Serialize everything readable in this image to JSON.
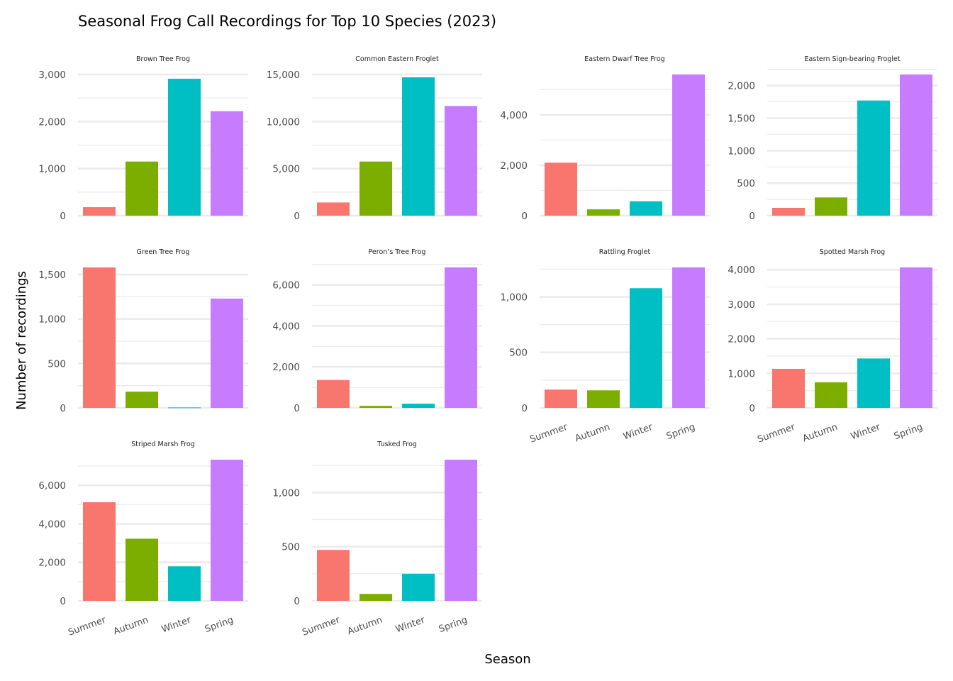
{
  "chart_data": {
    "type": "bar",
    "title": "Seasonal Frog Call Recordings for Top 10 Species (2023)",
    "xlabel": "Season",
    "ylabel": "Number of recordings",
    "categories": [
      "Summer",
      "Autumn",
      "Winter",
      "Spring"
    ],
    "colors": {
      "Summer": "#F8766D",
      "Autumn": "#7CAE00",
      "Winter": "#00BFC4",
      "Spring": "#C77CFF"
    },
    "grid": true,
    "legend": "none",
    "facets": [
      {
        "name": "Brown Tree Frog",
        "values": [
          180,
          1150,
          2910,
          2220
        ],
        "yticks": [
          0,
          1000,
          2000,
          3000
        ],
        "tick_labels": [
          "0",
          "1,000",
          "2,000",
          "3,000"
        ],
        "ylim": [
          0,
          3000
        ],
        "minor_step": 500
      },
      {
        "name": "Common Eastern Froglet",
        "values": [
          1400,
          5750,
          14700,
          11650
        ],
        "yticks": [
          0,
          5000,
          10000,
          15000
        ],
        "tick_labels": [
          "0",
          "5,000",
          "10,000",
          "15,000"
        ],
        "ylim": [
          0,
          15000
        ],
        "minor_step": 2500
      },
      {
        "name": "Eastern Dwarf Tree Frog",
        "values": [
          2100,
          250,
          570,
          5600
        ],
        "yticks": [
          0,
          2000,
          4000
        ],
        "tick_labels": [
          "0",
          "2,000",
          "4,000"
        ],
        "ylim": [
          0,
          5600
        ],
        "minor_step": 1000
      },
      {
        "name": "Eastern Sign-bearing Froglet",
        "values": [
          120,
          280,
          1770,
          2170
        ],
        "yticks": [
          0,
          500,
          1000,
          1500,
          2000
        ],
        "tick_labels": [
          "0",
          "500",
          "1,000",
          "1,500",
          "2,000"
        ],
        "ylim": [
          0,
          2170
        ],
        "minor_step": 250
      },
      {
        "name": "Green Tree Frog",
        "values": [
          1580,
          183,
          5,
          1230
        ],
        "yticks": [
          0,
          500,
          1000,
          1500
        ],
        "tick_labels": [
          "0",
          "500",
          "1,000",
          "1,500"
        ],
        "ylim": [
          0,
          1580
        ],
        "minor_step": 250
      },
      {
        "name": "Peron’s Tree Frog",
        "values": [
          1360,
          100,
          205,
          6850
        ],
        "yticks": [
          0,
          2000,
          4000,
          6000
        ],
        "tick_labels": [
          "0",
          "2,000",
          "4,000",
          "6,000"
        ],
        "ylim": [
          0,
          6850
        ],
        "minor_step": 1000
      },
      {
        "name": "Rattling Froglet",
        "values": [
          165,
          158,
          1078,
          1265
        ],
        "yticks": [
          0,
          500,
          1000
        ],
        "tick_labels": [
          "0",
          "500",
          "1,000"
        ],
        "ylim": [
          0,
          1265
        ],
        "minor_step": 250
      },
      {
        "name": "Spotted Marsh Frog",
        "values": [
          1130,
          740,
          1430,
          4065
        ],
        "yticks": [
          0,
          1000,
          2000,
          3000,
          4000
        ],
        "tick_labels": [
          "0",
          "1,000",
          "2,000",
          "3,000",
          "4,000"
        ],
        "ylim": [
          0,
          4065
        ],
        "minor_step": 500
      },
      {
        "name": "Striped Marsh Frog",
        "values": [
          5120,
          3225,
          1795,
          7330
        ],
        "yticks": [
          0,
          2000,
          4000,
          6000
        ],
        "tick_labels": [
          "0",
          "2,000",
          "4,000",
          "6,000"
        ],
        "ylim": [
          0,
          7330
        ],
        "minor_step": 1000
      },
      {
        "name": "Tusked Frog",
        "values": [
          470,
          64,
          250,
          1303
        ],
        "yticks": [
          0,
          500,
          1000
        ],
        "tick_labels": [
          "0",
          "500",
          "1,000"
        ],
        "ylim": [
          0,
          1303
        ],
        "minor_step": 250
      }
    ],
    "x_labels_shown_on": [
      "Rattling Froglet",
      "Spotted Marsh Frog",
      "Striped Marsh Frog",
      "Tusked Frog"
    ]
  }
}
